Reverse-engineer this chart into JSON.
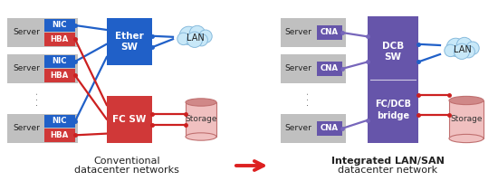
{
  "bg_color": "#ffffff",
  "gray_server": "#c0c0c0",
  "blue_nic": "#2060c8",
  "red_hba": "#d03838",
  "blue_sw": "#2060c8",
  "red_sw": "#d03838",
  "purple_sw": "#6655aa",
  "purple_cna": "#6655aa",
  "cloud_fill": "#c8e8f8",
  "cloud_edge": "#88bbdd",
  "storage_body": "#f0c0c0",
  "storage_top": "#d08888",
  "storage_edge": "#c07070",
  "line_blue": "#2060c8",
  "line_red": "#cc2020",
  "line_purple": "#7766bb",
  "arrow_red": "#dd2020",
  "title_left1": "Conventional",
  "title_left2": "datacenter networks",
  "title_right1": "Integrated LAN/SAN",
  "title_right2": "datacenter network",
  "server_label": "Server",
  "nic_label": "NIC",
  "hba_label": "HBA",
  "cna_label": "CNA",
  "ether_sw_label": "Ether\nSW",
  "fc_sw_label": "FC SW",
  "dcb_sw_label": "DCB\nSW",
  "fc_dcb_label": "FC/DCB\nbridge",
  "lan_label": "LAN",
  "storage_label": "Storage",
  "dot_color": "#555555"
}
